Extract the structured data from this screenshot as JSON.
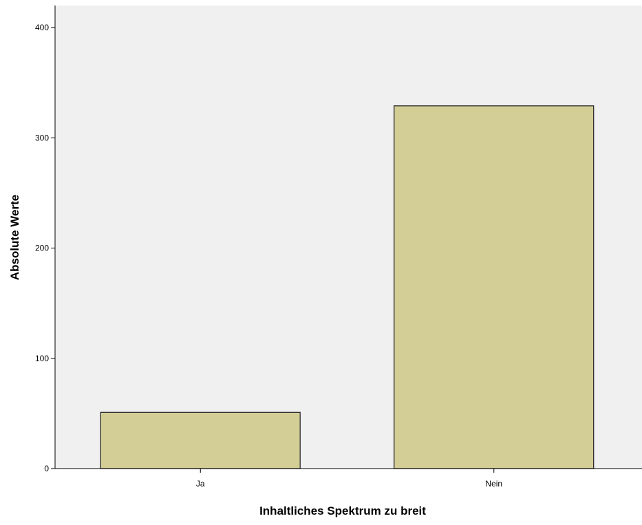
{
  "chart_data": {
    "type": "bar",
    "categories": [
      "Ja",
      "Nein"
    ],
    "values": [
      51,
      329
    ],
    "title": "",
    "xlabel": "Inhaltliches Spektrum zu breit",
    "ylabel": "Absolute Werte",
    "ylim": [
      0,
      420
    ],
    "yticks": [
      "0",
      "100",
      "200",
      "300",
      "400"
    ],
    "grid": false,
    "legend": "none",
    "colors": {
      "plot_background": "#f0f0f0",
      "bar_fill": "#d3cd96",
      "bar_stroke": "#2b2b2b",
      "axis": "#000000"
    }
  }
}
